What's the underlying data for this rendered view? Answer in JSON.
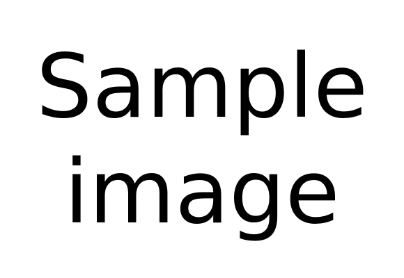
{
  "text": {
    "line1": "Sample",
    "line2": "image"
  },
  "colors": {
    "background": "#ffffff",
    "text": "#000000"
  }
}
